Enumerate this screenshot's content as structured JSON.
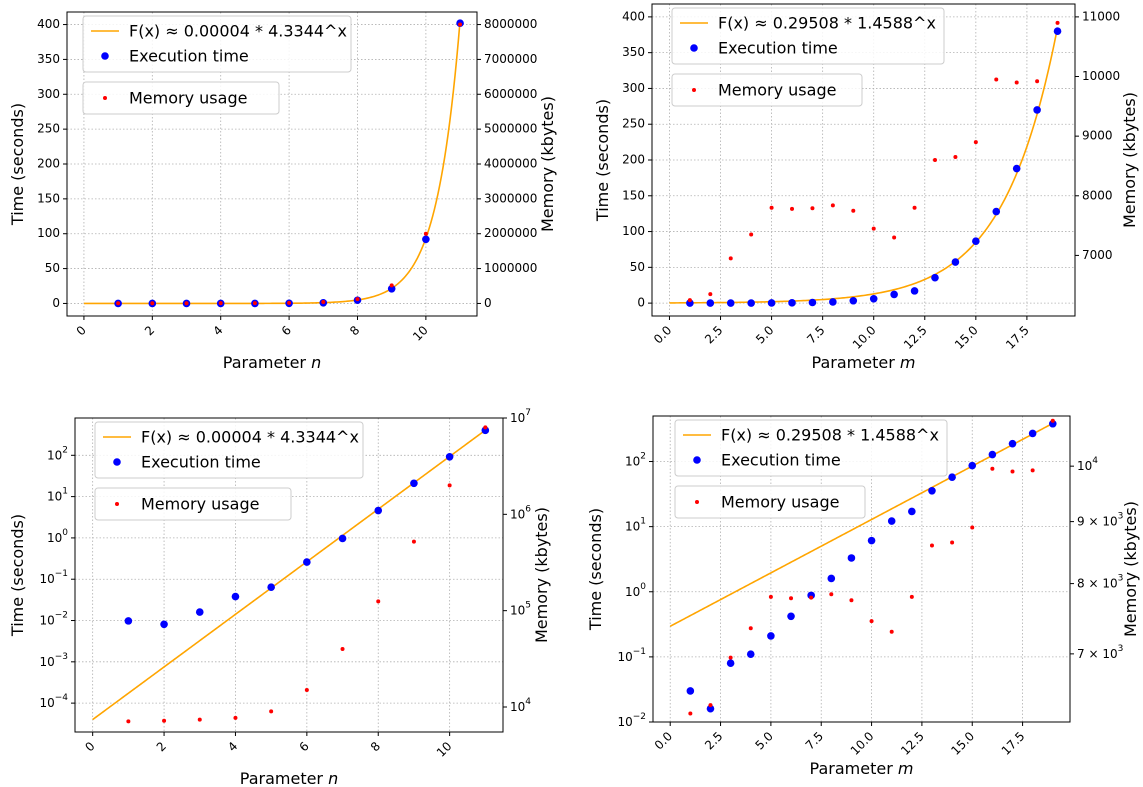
{
  "chart_data": [
    {
      "type": "scatter",
      "scale": "linear",
      "xlabel": "Parameter",
      "xvar": "n",
      "ylabel": "Time (seconds)",
      "y2label": "Memory (kbytes)",
      "xlim": [
        0,
        11
      ],
      "ylim": [
        0,
        400
      ],
      "y2lim": [
        0,
        8000000
      ],
      "x_ticks": [
        "0",
        "2",
        "4",
        "6",
        "8",
        "10"
      ],
      "y_ticks": [
        "0",
        "50",
        "100",
        "150",
        "200",
        "250",
        "300",
        "350",
        "400"
      ],
      "y2_ticks": [
        "0",
        "1000000",
        "2000000",
        "3000000",
        "4000000",
        "5000000",
        "6000000",
        "7000000",
        "8000000"
      ],
      "grid": true,
      "legend_position": "top-left",
      "fit": {
        "name": "F(x) ≈ 0.00004 * 4.3344^x",
        "a": 4e-05,
        "b": 4.3344,
        "x_range": [
          0,
          11
        ],
        "color": "#ffa500"
      },
      "series": [
        {
          "name": "Execution time",
          "axis": "left",
          "color": "#0000ff",
          "x": [
            1,
            2,
            3,
            4,
            5,
            6,
            7,
            8,
            9,
            10,
            11
          ],
          "values": [
            0.0098,
            0.0081,
            0.016,
            0.038,
            0.064,
            0.26,
            0.97,
            4.6,
            21,
            92,
            402
          ]
        },
        {
          "name": "Memory usage",
          "axis": "right",
          "color": "#ff0000",
          "x": [
            1,
            2,
            3,
            4,
            5,
            6,
            7,
            8,
            9,
            10,
            11
          ],
          "values": [
            7100,
            7200,
            7400,
            7700,
            9000,
            15000,
            40000,
            125000,
            520000,
            2000000,
            8000000
          ]
        }
      ]
    },
    {
      "type": "scatter",
      "scale": "linear",
      "xlabel": "Parameter",
      "xvar": "m",
      "ylabel": "Time (seconds)",
      "y2label": "Memory (kbytes)",
      "xlim": [
        0,
        19
      ],
      "ylim": [
        0,
        400
      ],
      "y2lim": [
        6200,
        11000
      ],
      "x_ticks": [
        "0.0",
        "2.5",
        "5.0",
        "7.5",
        "10.0",
        "12.5",
        "15.0",
        "17.5"
      ],
      "y_ticks": [
        "0",
        "50",
        "100",
        "150",
        "200",
        "250",
        "300",
        "350",
        "400"
      ],
      "y2_ticks": [
        "7000",
        "8000",
        "9000",
        "10000",
        "11000"
      ],
      "grid": true,
      "legend_position": "top-left",
      "fit": {
        "name": "F(x) ≈ 0.29508 * 1.4588^x",
        "a": 0.29508,
        "b": 1.4588,
        "x_range": [
          0,
          19
        ],
        "color": "#ffa500"
      },
      "series": [
        {
          "name": "Execution time",
          "axis": "left",
          "color": "#0000ff",
          "x": [
            1,
            2,
            3,
            4,
            5,
            6,
            7,
            8,
            9,
            10,
            11,
            12,
            13,
            14,
            15,
            16,
            17,
            18,
            19
          ],
          "values": [
            0.03,
            0.016,
            0.08,
            0.11,
            0.21,
            0.42,
            0.88,
            1.6,
            3.3,
            6.1,
            12.2,
            17.1,
            35.5,
            57.4,
            86.5,
            128,
            188,
            270,
            380
          ]
        },
        {
          "name": "Memory usage",
          "axis": "right",
          "color": "#ff0000",
          "x": [
            1,
            2,
            3,
            4,
            5,
            6,
            7,
            8,
            9,
            10,
            11,
            12,
            13,
            14,
            15,
            16,
            17,
            18,
            19
          ],
          "values": [
            6250,
            6350,
            6950,
            7350,
            7800,
            7780,
            7790,
            7840,
            7750,
            7450,
            7300,
            7800,
            8600,
            8650,
            8900,
            9950,
            9900,
            9920,
            10900
          ]
        }
      ]
    },
    {
      "type": "scatter",
      "scale": "log",
      "xlabel": "Parameter",
      "xvar": "n",
      "ylabel": "Time (seconds)",
      "y2label": "Memory (kbytes)",
      "xlim": [
        0,
        11
      ],
      "ylim": [
        2e-05,
        800
      ],
      "y2lim": [
        5500,
        10000000
      ],
      "x_ticks": [
        "0",
        "2",
        "4",
        "6",
        "8",
        "10"
      ],
      "y_ticks": [
        {
          "base": "10",
          "exp": "−4",
          "value": 0.0001
        },
        {
          "base": "10",
          "exp": "−3",
          "value": 0.001
        },
        {
          "base": "10",
          "exp": "−2",
          "value": 0.01
        },
        {
          "base": "10",
          "exp": "−1",
          "value": 0.1
        },
        {
          "base": "10",
          "exp": "0",
          "value": 1
        },
        {
          "base": "10",
          "exp": "1",
          "value": 10
        },
        {
          "base": "10",
          "exp": "2",
          "value": 100
        }
      ],
      "y2_ticks": [
        {
          "base": "10",
          "exp": "4",
          "value": 10000
        },
        {
          "base": "10",
          "exp": "5",
          "value": 100000
        },
        {
          "base": "10",
          "exp": "6",
          "value": 1000000
        },
        {
          "base": "10",
          "exp": "7",
          "value": 10000000
        }
      ],
      "grid": true,
      "legend_position": "top-left",
      "fit": {
        "name": "F(x) ≈ 0.00004 * 4.3344^x",
        "a": 4e-05,
        "b": 4.3344,
        "x_range": [
          0,
          11
        ],
        "color": "#ffa500"
      },
      "series": [
        {
          "name": "Execution time",
          "axis": "left",
          "color": "#0000ff",
          "x": [
            1,
            2,
            3,
            4,
            5,
            6,
            7,
            8,
            9,
            10,
            11
          ],
          "values": [
            0.0098,
            0.0081,
            0.016,
            0.038,
            0.064,
            0.26,
            0.97,
            4.6,
            21,
            92,
            402
          ]
        },
        {
          "name": "Memory usage",
          "axis": "right",
          "color": "#ff0000",
          "x": [
            1,
            2,
            3,
            4,
            5,
            6,
            7,
            8,
            9,
            10,
            11
          ],
          "values": [
            7100,
            7200,
            7400,
            7700,
            9000,
            15000,
            40000,
            125000,
            520000,
            2000000,
            8000000
          ]
        }
      ]
    },
    {
      "type": "scatter",
      "scale": "log",
      "xlabel": "Parameter",
      "xvar": "m",
      "ylabel": "Time (seconds)",
      "y2label": "Memory (kbytes)",
      "xlim": [
        0,
        19
      ],
      "ylim": [
        0.01,
        500
      ],
      "y2lim": [
        6150,
        11000
      ],
      "x_ticks": [
        "0.0",
        "2.5",
        "5.0",
        "7.5",
        "10.0",
        "12.5",
        "15.0",
        "17.5"
      ],
      "y_ticks": [
        {
          "base": "10",
          "exp": "−2",
          "value": 0.01
        },
        {
          "base": "10",
          "exp": "−1",
          "value": 0.1
        },
        {
          "base": "10",
          "exp": "0",
          "value": 1
        },
        {
          "base": "10",
          "exp": "1",
          "value": 10
        },
        {
          "base": "10",
          "exp": "2",
          "value": 100
        }
      ],
      "y2_ticks": [
        {
          "base": "7 × 10",
          "exp": "3",
          "value": 7000
        },
        {
          "base": "8 × 10",
          "exp": "3",
          "value": 8000
        },
        {
          "base": "9 × 10",
          "exp": "3",
          "value": 9000
        },
        {
          "base": "10",
          "exp": "4",
          "value": 10000
        }
      ],
      "grid": true,
      "legend_position": "top-left",
      "fit": {
        "name": "F(x) ≈ 0.29508 * 1.4588^x",
        "a": 0.29508,
        "b": 1.4588,
        "x_range": [
          0,
          19
        ],
        "color": "#ffa500"
      },
      "series": [
        {
          "name": "Execution time",
          "axis": "left",
          "color": "#0000ff",
          "x": [
            1,
            2,
            3,
            4,
            5,
            6,
            7,
            8,
            9,
            10,
            11,
            12,
            13,
            14,
            15,
            16,
            17,
            18,
            19
          ],
          "values": [
            0.03,
            0.016,
            0.08,
            0.11,
            0.21,
            0.42,
            0.88,
            1.6,
            3.3,
            6.1,
            12.2,
            17.1,
            35.5,
            57.4,
            86.5,
            128,
            188,
            270,
            380
          ]
        },
        {
          "name": "Memory usage",
          "axis": "right",
          "color": "#ff0000",
          "x": [
            1,
            2,
            3,
            4,
            5,
            6,
            7,
            8,
            9,
            10,
            11,
            12,
            13,
            14,
            15,
            16,
            17,
            18,
            19
          ],
          "values": [
            6250,
            6350,
            6950,
            7350,
            7800,
            7780,
            7790,
            7840,
            7750,
            7450,
            7300,
            7800,
            8600,
            8650,
            8900,
            9950,
            9900,
            9920,
            10900
          ]
        }
      ]
    }
  ]
}
